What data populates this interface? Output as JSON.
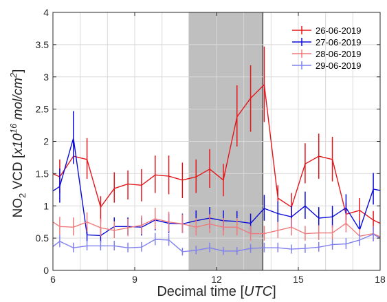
{
  "chart_data": {
    "type": "line",
    "xlabel": {
      "main": "Decimal time ",
      "unit": "UTC"
    },
    "ylabel": {
      "prefix": "NO",
      "sub": "2",
      "mid": " VCD ",
      "unit_a": "x10",
      "exp": "16",
      "unit_b": " mol/cm",
      "exp2": "2"
    },
    "xlim": [
      6,
      18
    ],
    "ylim": [
      0,
      4
    ],
    "xticks": [
      6,
      9,
      12,
      15,
      18
    ],
    "yticks": [
      0,
      0.5,
      1,
      1.5,
      2,
      2.5,
      3,
      3.5,
      4
    ],
    "xtick_labels": [
      "6",
      "9",
      "12",
      "15",
      "18"
    ],
    "ytick_labels": [
      "0",
      "0.5",
      "1",
      "1.5",
      "2",
      "2.5",
      "3",
      "3.5",
      "4"
    ],
    "grid": true,
    "legend_position": "top-right",
    "shaded_region": {
      "x": [
        11,
        13.7
      ],
      "color": "#bfbfbf"
    },
    "series": [
      {
        "name": "26-06-2019",
        "color": "#e3161b",
        "points": [
          {
            "x": 6.0,
            "y": 1.5
          },
          {
            "x": 6.25,
            "y": 1.45,
            "lo": 1.2,
            "hi": 1.72
          },
          {
            "x": 6.75,
            "y": 1.77
          },
          {
            "x": 7.25,
            "y": 1.72,
            "lo": 1.42,
            "hi": 2.05
          },
          {
            "x": 7.75,
            "y": 0.98,
            "lo": 0.75,
            "hi": 1.15
          },
          {
            "x": 8.25,
            "y": 1.27,
            "lo": 1.05,
            "hi": 1.52
          },
          {
            "x": 8.75,
            "y": 1.34,
            "lo": 1.1,
            "hi": 1.55
          },
          {
            "x": 9.25,
            "y": 1.32,
            "lo": 1.07,
            "hi": 1.57
          },
          {
            "x": 9.75,
            "y": 1.48,
            "lo": 1.2,
            "hi": 1.78
          },
          {
            "x": 10.25,
            "y": 1.46,
            "lo": 1.18,
            "hi": 1.78
          },
          {
            "x": 10.75,
            "y": 1.4,
            "lo": 1.12,
            "hi": 1.67
          },
          {
            "x": 11.25,
            "y": 1.45,
            "lo": 1.2,
            "hi": 1.72
          },
          {
            "x": 11.75,
            "y": 1.57,
            "lo": 1.28,
            "hi": 1.88
          },
          {
            "x": 12.25,
            "y": 1.4,
            "lo": 1.15,
            "hi": 1.65
          },
          {
            "x": 12.75,
            "y": 2.38,
            "lo": 1.92,
            "hi": 2.87
          },
          {
            "x": 13.25,
            "y": 2.67,
            "lo": 2.15,
            "hi": 3.18
          },
          {
            "x": 13.75,
            "y": 2.88,
            "lo": 2.3,
            "hi": 3.47
          },
          {
            "x": 14.25,
            "y": 1.12,
            "lo": 0.92,
            "hi": 1.32
          },
          {
            "x": 14.75,
            "y": 0.98,
            "lo": 0.78,
            "hi": 1.2
          },
          {
            "x": 15.25,
            "y": 1.65,
            "lo": 1.35,
            "hi": 1.97
          },
          {
            "x": 15.75,
            "y": 1.77,
            "lo": 1.42,
            "hi": 2.12
          },
          {
            "x": 16.25,
            "y": 1.72,
            "lo": 1.38,
            "hi": 2.07
          },
          {
            "x": 16.75,
            "y": 0.87,
            "lo": 0.7,
            "hi": 1.05
          },
          {
            "x": 17.25,
            "y": 0.93,
            "lo": 0.75,
            "hi": 1.12
          },
          {
            "x": 17.75,
            "y": 0.78,
            "lo": 0.62,
            "hi": 0.92
          },
          {
            "x": 18.0,
            "y": 0.73
          }
        ]
      },
      {
        "name": "27-06-2019",
        "color": "#0b0bd9",
        "points": [
          {
            "x": 6.0,
            "y": 1.23
          },
          {
            "x": 6.25,
            "y": 1.3,
            "lo": 1.05,
            "hi": 1.58
          },
          {
            "x": 6.75,
            "y": 2.05,
            "lo": 1.65,
            "hi": 2.47
          },
          {
            "x": 7.25,
            "y": 0.55,
            "lo": 0.45,
            "hi": 0.67
          },
          {
            "x": 7.75,
            "y": 0.54,
            "lo": 0.43,
            "hi": 0.66
          },
          {
            "x": 8.25,
            "y": 0.68,
            "lo": 0.55,
            "hi": 0.82
          },
          {
            "x": 8.75,
            "y": 0.68,
            "lo": 0.55,
            "hi": 0.82
          },
          {
            "x": 9.25,
            "y": 0.67,
            "lo": 0.54,
            "hi": 0.82
          },
          {
            "x": 9.75,
            "y": 0.78,
            "lo": 0.62,
            "hi": 0.95
          },
          {
            "x": 10.25,
            "y": 0.73,
            "lo": 0.58,
            "hi": 0.88
          },
          {
            "x": 10.75,
            "y": 0.72,
            "lo": 0.58,
            "hi": 0.88
          },
          {
            "x": 11.25,
            "y": 0.77,
            "lo": 0.62,
            "hi": 0.93
          },
          {
            "x": 11.75,
            "y": 0.81,
            "lo": 0.65,
            "hi": 0.98
          },
          {
            "x": 12.25,
            "y": 0.77,
            "lo": 0.62,
            "hi": 0.93
          },
          {
            "x": 12.75,
            "y": 0.76,
            "lo": 0.61,
            "hi": 0.92
          },
          {
            "x": 13.25,
            "y": 0.73,
            "lo": 0.58,
            "hi": 0.88
          },
          {
            "x": 13.75,
            "y": 0.96,
            "lo": 0.77,
            "hi": 1.17
          },
          {
            "x": 14.25,
            "y": 0.88,
            "lo": 0.7,
            "hi": 1.07
          },
          {
            "x": 14.75,
            "y": 0.83,
            "lo": 0.66,
            "hi": 1.0
          },
          {
            "x": 15.25,
            "y": 1.0,
            "lo": 0.8,
            "hi": 1.22
          },
          {
            "x": 15.75,
            "y": 0.81,
            "lo": 0.65,
            "hi": 0.98
          },
          {
            "x": 16.25,
            "y": 0.83,
            "lo": 0.66,
            "hi": 1.0
          },
          {
            "x": 16.75,
            "y": 0.97,
            "lo": 0.78,
            "hi": 1.18
          },
          {
            "x": 17.25,
            "y": 0.63,
            "lo": 0.5,
            "hi": 0.77
          },
          {
            "x": 17.75,
            "y": 1.26,
            "lo": 1.02,
            "hi": 1.51
          },
          {
            "x": 18.0,
            "y": 1.24
          }
        ]
      },
      {
        "name": "28-06-2019",
        "color": "#f0797b",
        "points": [
          {
            "x": 6.0,
            "y": 0.75
          },
          {
            "x": 6.25,
            "y": 0.68,
            "lo": 0.55,
            "hi": 0.83
          },
          {
            "x": 6.75,
            "y": 0.67,
            "lo": 0.54,
            "hi": 0.82
          },
          {
            "x": 7.25,
            "y": 0.75,
            "lo": 0.6,
            "hi": 0.9
          },
          {
            "x": 7.75,
            "y": 0.66,
            "lo": 0.53,
            "hi": 0.8
          },
          {
            "x": 8.25,
            "y": 0.62,
            "lo": 0.5,
            "hi": 0.76
          },
          {
            "x": 8.75,
            "y": 0.66,
            "lo": 0.53,
            "hi": 0.8
          },
          {
            "x": 9.25,
            "y": 0.7,
            "lo": 0.56,
            "hi": 0.85
          },
          {
            "x": 9.75,
            "y": 0.8,
            "lo": 0.64,
            "hi": 0.97
          },
          {
            "x": 10.25,
            "y": 0.75,
            "lo": 0.6,
            "hi": 0.91
          },
          {
            "x": 10.75,
            "y": 0.72,
            "lo": 0.58,
            "hi": 0.87
          },
          {
            "x": 11.25,
            "y": 0.67,
            "lo": 0.54,
            "hi": 0.81
          },
          {
            "x": 11.75,
            "y": 0.72,
            "lo": 0.58,
            "hi": 0.87
          },
          {
            "x": 12.25,
            "y": 0.67,
            "lo": 0.54,
            "hi": 0.81
          },
          {
            "x": 12.75,
            "y": 0.67,
            "lo": 0.54,
            "hi": 0.81
          },
          {
            "x": 13.25,
            "y": 0.57,
            "lo": 0.46,
            "hi": 0.69
          },
          {
            "x": 13.75,
            "y": 0.57,
            "lo": 0.46,
            "hi": 0.69
          },
          {
            "x": 14.25,
            "y": 0.62,
            "lo": 0.5,
            "hi": 0.75
          },
          {
            "x": 14.75,
            "y": 0.67,
            "lo": 0.54,
            "hi": 0.81
          },
          {
            "x": 15.25,
            "y": 0.57,
            "lo": 0.46,
            "hi": 0.69
          },
          {
            "x": 15.75,
            "y": 0.58,
            "lo": 0.47,
            "hi": 0.7
          },
          {
            "x": 16.25,
            "y": 0.58,
            "lo": 0.47,
            "hi": 0.7
          },
          {
            "x": 16.75,
            "y": 0.73,
            "lo": 0.59,
            "hi": 0.88
          },
          {
            "x": 17.25,
            "y": 0.53,
            "lo": 0.43,
            "hi": 0.64
          },
          {
            "x": 17.75,
            "y": 0.57,
            "lo": 0.46,
            "hi": 0.69
          },
          {
            "x": 18.0,
            "y": 0.52
          }
        ]
      },
      {
        "name": "29-06-2019",
        "color": "#7f7ff0",
        "points": [
          {
            "x": 6.0,
            "y": 0.37
          },
          {
            "x": 6.25,
            "y": 0.45,
            "lo": 0.36,
            "hi": 0.55
          },
          {
            "x": 6.75,
            "y": 0.35,
            "lo": 0.28,
            "hi": 0.43
          },
          {
            "x": 7.25,
            "y": 0.38,
            "lo": 0.31,
            "hi": 0.46
          },
          {
            "x": 7.75,
            "y": 0.38,
            "lo": 0.31,
            "hi": 0.46
          },
          {
            "x": 8.25,
            "y": 0.38,
            "lo": 0.31,
            "hi": 0.46
          },
          {
            "x": 8.75,
            "y": 0.35,
            "lo": 0.28,
            "hi": 0.43
          },
          {
            "x": 9.25,
            "y": 0.36,
            "lo": 0.29,
            "hi": 0.44
          },
          {
            "x": 9.75,
            "y": 0.48,
            "lo": 0.39,
            "hi": 0.58
          },
          {
            "x": 10.25,
            "y": 0.47,
            "lo": 0.38,
            "hi": 0.57
          },
          {
            "x": 10.75,
            "y": 0.29,
            "lo": 0.23,
            "hi": 0.35
          },
          {
            "x": 11.25,
            "y": 0.31,
            "lo": 0.25,
            "hi": 0.38
          },
          {
            "x": 11.75,
            "y": 0.35,
            "lo": 0.28,
            "hi": 0.43
          },
          {
            "x": 12.25,
            "y": 0.3,
            "lo": 0.24,
            "hi": 0.36
          },
          {
            "x": 12.75,
            "y": 0.3,
            "lo": 0.24,
            "hi": 0.36
          },
          {
            "x": 13.25,
            "y": 0.34,
            "lo": 0.27,
            "hi": 0.41
          },
          {
            "x": 13.75,
            "y": 0.35,
            "lo": 0.28,
            "hi": 0.43
          },
          {
            "x": 14.25,
            "y": 0.35,
            "lo": 0.28,
            "hi": 0.43
          },
          {
            "x": 14.75,
            "y": 0.33,
            "lo": 0.26,
            "hi": 0.4
          },
          {
            "x": 15.25,
            "y": 0.34,
            "lo": 0.27,
            "hi": 0.41
          },
          {
            "x": 15.75,
            "y": 0.36,
            "lo": 0.29,
            "hi": 0.44
          },
          {
            "x": 16.25,
            "y": 0.4,
            "lo": 0.32,
            "hi": 0.48
          },
          {
            "x": 16.75,
            "y": 0.41,
            "lo": 0.33,
            "hi": 0.5
          },
          {
            "x": 17.25,
            "y": 0.47,
            "lo": 0.38,
            "hi": 0.57
          },
          {
            "x": 17.75,
            "y": 0.56,
            "lo": 0.45,
            "hi": 0.68
          },
          {
            "x": 18.0,
            "y": 0.5
          }
        ]
      }
    ]
  }
}
